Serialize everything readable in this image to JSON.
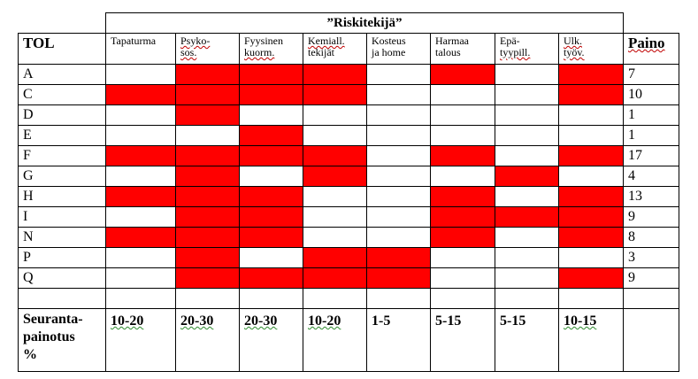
{
  "table": {
    "title": "”Riskitekijä”",
    "tol_header": "TOL",
    "paino_header": "Paino",
    "columns": [
      {
        "line1": "Tapaturma",
        "line2": ""
      },
      {
        "line1": "Psyko-",
        "line2": "sos."
      },
      {
        "line1": "Fyysinen",
        "line2": "kuorm."
      },
      {
        "line1": "Kemiall.",
        "line2": "tekijät"
      },
      {
        "line1": "Kosteus",
        "line2": "ja home"
      },
      {
        "line1": "Harmaa",
        "line2": "talous"
      },
      {
        "line1": "Epä-",
        "line2": "tyypill."
      },
      {
        "line1": "Ulk.",
        "line2": "työv."
      }
    ],
    "rows": [
      {
        "tol": "A",
        "cells": [
          0,
          1,
          1,
          1,
          0,
          1,
          0,
          1
        ],
        "paino": "7"
      },
      {
        "tol": "C",
        "cells": [
          1,
          1,
          1,
          1,
          0,
          0,
          0,
          1
        ],
        "paino": "10"
      },
      {
        "tol": "D",
        "cells": [
          0,
          1,
          0,
          0,
          0,
          0,
          0,
          0
        ],
        "paino": "1"
      },
      {
        "tol": "E",
        "cells": [
          0,
          0,
          1,
          0,
          0,
          0,
          0,
          0
        ],
        "paino": "1"
      },
      {
        "tol": "F",
        "cells": [
          1,
          1,
          1,
          1,
          0,
          1,
          0,
          1
        ],
        "paino": "17"
      },
      {
        "tol": "G",
        "cells": [
          0,
          1,
          0,
          1,
          0,
          0,
          1,
          0
        ],
        "paino": "4"
      },
      {
        "tol": "H",
        "cells": [
          1,
          1,
          1,
          0,
          0,
          1,
          0,
          1
        ],
        "paino": "13"
      },
      {
        "tol": "I",
        "cells": [
          0,
          1,
          1,
          0,
          0,
          1,
          1,
          1
        ],
        "paino": "9"
      },
      {
        "tol": "N",
        "cells": [
          1,
          1,
          1,
          0,
          0,
          1,
          0,
          1
        ],
        "paino": "8"
      },
      {
        "tol": "P",
        "cells": [
          0,
          1,
          0,
          1,
          1,
          0,
          0,
          0
        ],
        "paino": "3"
      },
      {
        "tol": "Q",
        "cells": [
          0,
          1,
          1,
          1,
          1,
          0,
          0,
          1
        ],
        "paino": "9"
      }
    ],
    "footer": {
      "label_line1": "Seuranta-",
      "label_line2": "painotus",
      "label_line3": "%",
      "values": [
        "10-20",
        "20-30",
        "20-30",
        "10-20",
        "1-5",
        "5-15",
        "5-15",
        "10-15"
      ]
    },
    "fill_color": "#ff0000"
  }
}
